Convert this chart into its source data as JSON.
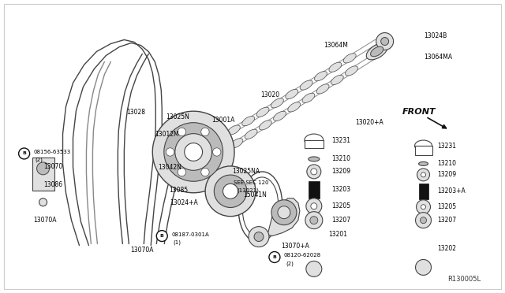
{
  "bg_color": "#ffffff",
  "border_color": "#aaaaaa",
  "line_color": "#444444",
  "dark_color": "#111111",
  "gray_fill": "#e0e0e0",
  "mid_gray": "#bbbbbb",
  "dark_gray": "#888888",
  "ref_number": "R130005L",
  "fig_size": [
    6.4,
    3.72
  ],
  "dpi": 100,
  "front_text": "FRONT",
  "see_sec": "SEE SEC 120",
  "see_sec2": "(13021)"
}
